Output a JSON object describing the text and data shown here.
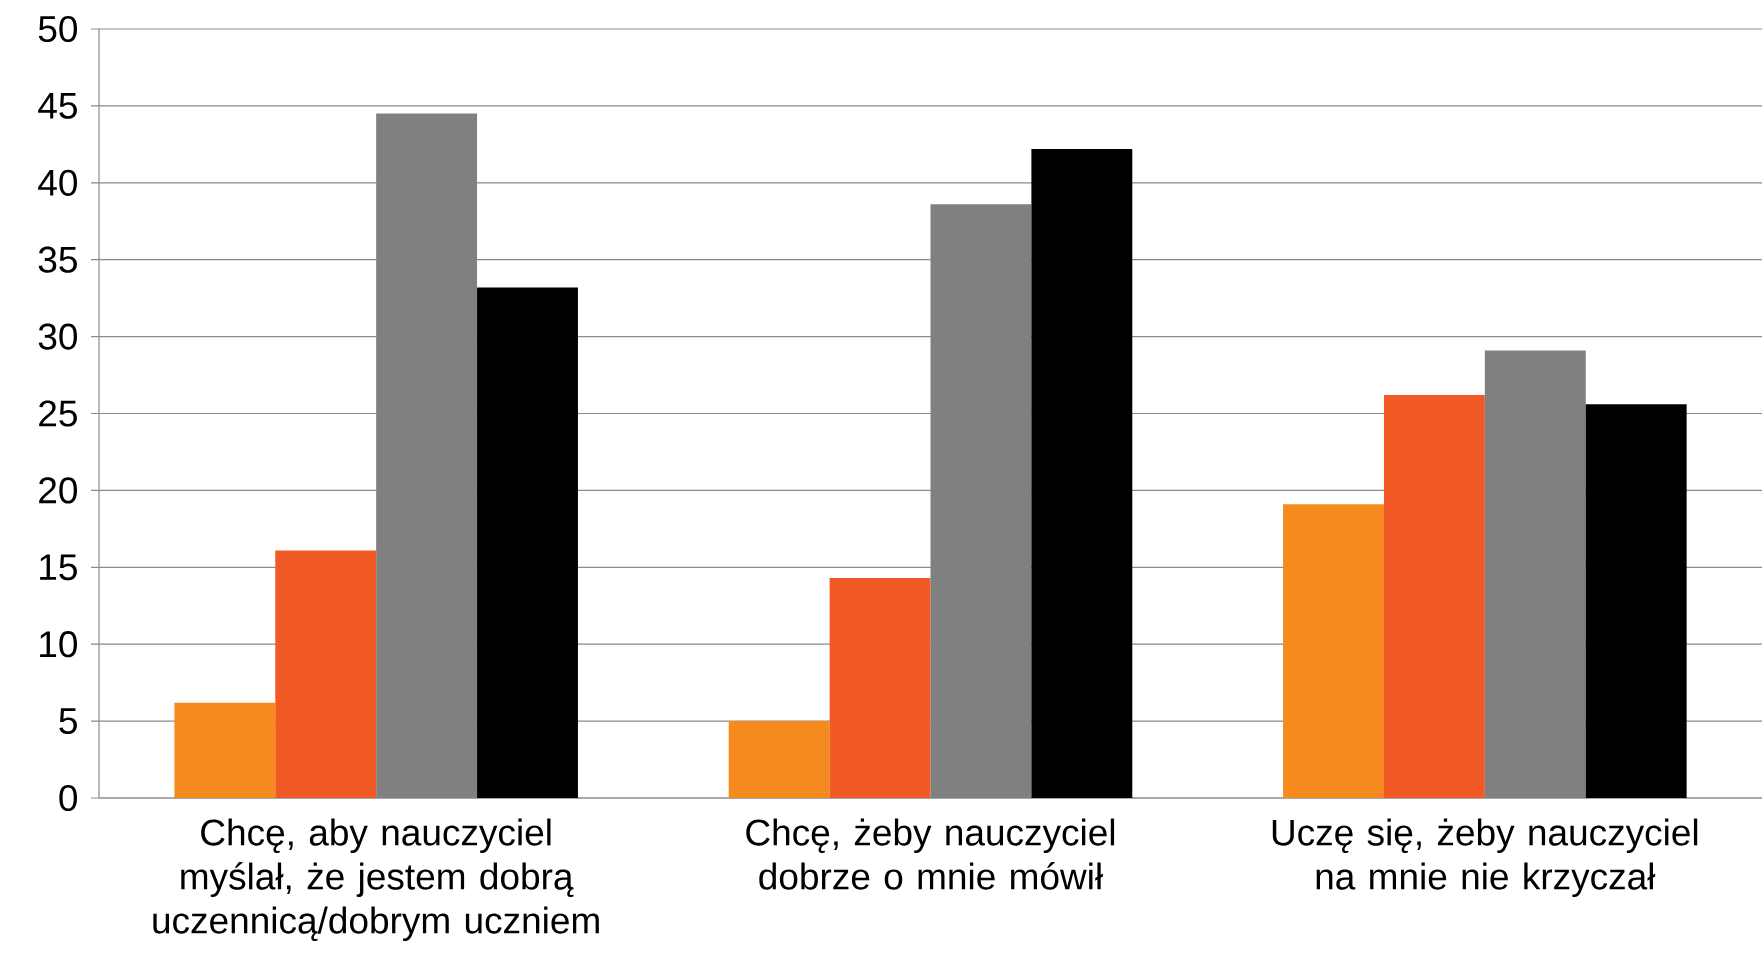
{
  "chart_data": {
    "type": "bar",
    "categories": [
      "Chcę, aby nauczyciel myślał, że jestem dobrą uczennicą/dobrym uczniem",
      "Chcę, żeby nauczyciel dobrze o mnie mówił",
      "Uczę się, żeby nauczyciel na mnie nie krzyczał"
    ],
    "series": [
      {
        "color": "#f58a1f",
        "values": [
          6.2,
          5.0,
          19.1
        ]
      },
      {
        "color": "#f15a24",
        "values": [
          16.1,
          14.3,
          26.2
        ]
      },
      {
        "color": "#808080",
        "values": [
          44.5,
          38.6,
          29.1
        ]
      },
      {
        "color": "#000000",
        "values": [
          33.2,
          42.2,
          25.6
        ]
      }
    ],
    "ylim": [
      0,
      50
    ],
    "yticks": [
      0,
      5,
      10,
      15,
      20,
      25,
      30,
      35,
      40,
      45,
      50
    ],
    "grid": "y"
  }
}
